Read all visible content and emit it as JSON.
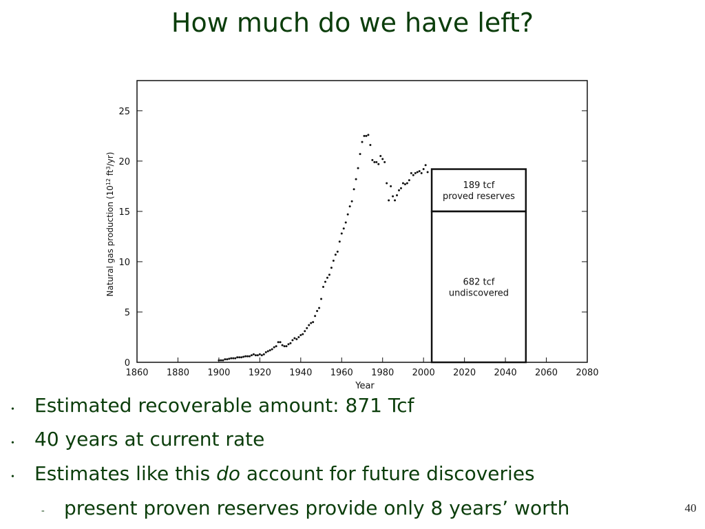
{
  "slide_title": "How much do we have left?",
  "chart_data": {
    "type": "scatter",
    "xlabel": "Year",
    "ylabel_parts": [
      "Natural gas production (10",
      "12",
      " ft",
      "3",
      "/yr)"
    ],
    "xlim": [
      1860,
      2080
    ],
    "ylim": [
      0,
      28
    ],
    "xticks": [
      1860,
      1880,
      1900,
      1920,
      1940,
      1960,
      1980,
      2000,
      2020,
      2040,
      2060,
      2080
    ],
    "yticks": [
      0,
      5,
      10,
      15,
      20,
      25
    ],
    "color": "#111111",
    "x": [
      1900,
      1901,
      1902,
      1903,
      1904,
      1905,
      1906,
      1907,
      1908,
      1909,
      1910,
      1911,
      1912,
      1913,
      1914,
      1915,
      1916,
      1917,
      1918,
      1919,
      1920,
      1921,
      1922,
      1923,
      1924,
      1925,
      1926,
      1927,
      1928,
      1929,
      1930,
      1931,
      1932,
      1933,
      1934,
      1935,
      1936,
      1937,
      1938,
      1939,
      1940,
      1941,
      1942,
      1943,
      1944,
      1945,
      1946,
      1947,
      1948,
      1949,
      1950,
      1951,
      1952,
      1953,
      1954,
      1955,
      1956,
      1957,
      1958,
      1959,
      1960,
      1961,
      1962,
      1963,
      1964,
      1965,
      1966,
      1967,
      1968,
      1969,
      1970,
      1971,
      1972,
      1973,
      1974,
      1975,
      1976,
      1977,
      1978,
      1979,
      1980,
      1981,
      1982,
      1983,
      1984,
      1985,
      1986,
      1987,
      1988,
      1989,
      1990,
      1991,
      1992,
      1993,
      1994,
      1995,
      1996,
      1997,
      1998,
      1999,
      2000,
      2001,
      2002
    ],
    "values": [
      0.2,
      0.2,
      0.2,
      0.3,
      0.3,
      0.35,
      0.4,
      0.4,
      0.4,
      0.5,
      0.5,
      0.5,
      0.55,
      0.6,
      0.6,
      0.6,
      0.7,
      0.8,
      0.7,
      0.7,
      0.8,
      0.7,
      0.8,
      1.0,
      1.1,
      1.2,
      1.3,
      1.5,
      1.6,
      2.0,
      2.0,
      1.7,
      1.6,
      1.6,
      1.8,
      1.9,
      2.2,
      2.4,
      2.3,
      2.5,
      2.7,
      2.8,
      3.1,
      3.4,
      3.7,
      3.9,
      4.0,
      4.6,
      5.1,
      5.4,
      6.3,
      7.5,
      8.0,
      8.4,
      8.7,
      9.4,
      10.1,
      10.7,
      11.0,
      12.0,
      12.8,
      13.3,
      13.9,
      14.7,
      15.5,
      16.0,
      17.2,
      18.2,
      19.3,
      20.7,
      21.9,
      22.5,
      22.5,
      22.6,
      21.6,
      20.1,
      19.9,
      19.9,
      19.7,
      20.5,
      20.2,
      19.9,
      17.8,
      16.1,
      17.5,
      16.5,
      16.1,
      16.6,
      17.1,
      17.3,
      17.8,
      17.7,
      17.8,
      18.1,
      18.8,
      18.6,
      18.8,
      18.9,
      19.0,
      18.8,
      19.2,
      19.6,
      18.9
    ],
    "box_x": [
      2004,
      2050
    ],
    "boxes": [
      {
        "label": "682 tcf",
        "sublabel": "undiscovered",
        "value": 15
      },
      {
        "label": "189 tcf",
        "sublabel": "proved reserves",
        "value": 4.2
      }
    ]
  },
  "bullets": [
    {
      "parts": [
        "Estimated recoverable amount: 871 Tcf"
      ]
    },
    {
      "parts": [
        "40 years at current rate"
      ]
    },
    {
      "parts": [
        "Estimates like this ",
        "do",
        " account for future discoveries"
      ]
    }
  ],
  "sub_bullet": "present proven reserves provide only 8 years’ worth",
  "page_number": "40"
}
